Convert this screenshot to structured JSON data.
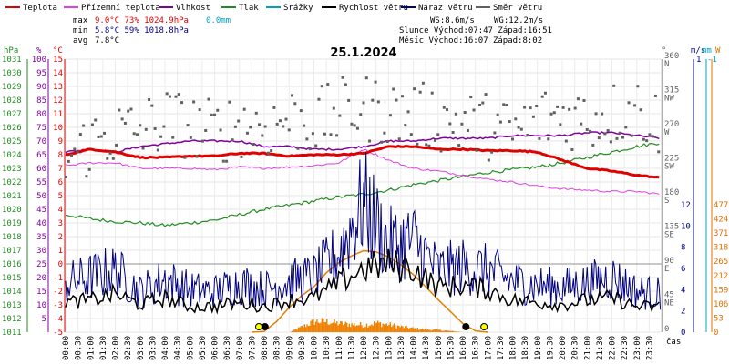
{
  "chart_data": {
    "type": "line",
    "title": "25.1.2024",
    "legend": [
      {
        "name": "Teplota",
        "color": "#e00000"
      },
      {
        "name": "Přízemní teplota",
        "color": "#e040e0"
      },
      {
        "name": "Vlhkost",
        "color": "#8000a0"
      },
      {
        "name": "Tlak",
        "color": "#228b22"
      },
      {
        "name": "Srážky",
        "color": "#00a0c0"
      },
      {
        "name": "Rychlost větru",
        "color": "#000000"
      },
      {
        "name": "Náraz větru",
        "color": "#000080"
      },
      {
        "name": "Směr větru",
        "color": "#606060"
      }
    ],
    "stats": {
      "max_label": "max",
      "max_values": "9.0°C  73%  1024.9hPa",
      "max_rain": "0.0mm",
      "min_label": "min",
      "min_values": "5.8°C  59%  1018.8hPa",
      "avg_label": "avg",
      "avg_values": "7.8°C",
      "wind_line": "WS:8.6m/s",
      "gust_line": "WG:12.2m/s",
      "sun_line": "Slunce Východ:07:47  Západ:16:51",
      "moon_line": "Měsíc  Východ:16:07  Západ:8:02"
    },
    "axes": {
      "hpa": {
        "label": "hPa",
        "ticks": [
          1031,
          1030,
          1029,
          1028,
          1027,
          1026,
          1025,
          1024,
          1023,
          1022,
          1021,
          1020,
          1019,
          1018,
          1017,
          1016,
          1015,
          1014,
          1013,
          1012,
          1011
        ]
      },
      "pct": {
        "label": "%",
        "ticks": [
          100,
          95,
          90,
          85,
          80,
          75,
          70,
          65,
          60,
          55,
          50,
          45,
          40,
          35,
          30,
          25,
          20,
          15,
          10,
          5
        ]
      },
      "degc": {
        "label": "°C",
        "ticks": [
          15,
          14,
          13,
          12,
          11,
          10,
          9,
          8,
          7,
          6,
          5,
          4,
          3,
          2,
          1,
          0,
          -1,
          -2,
          -3,
          -4,
          -5
        ]
      },
      "dir": {
        "label": "°",
        "ticks": [
          {
            "v": 360,
            "l": "N"
          },
          {
            "v": 315,
            "l": "NW"
          },
          {
            "v": 270,
            "l": "W"
          },
          {
            "v": 225,
            "l": "SW"
          },
          {
            "v": 180,
            "l": "S"
          },
          {
            "v": 135,
            "l": "SE"
          },
          {
            "v": 90,
            "l": "E"
          },
          {
            "v": 45,
            "l": "NE"
          },
          {
            "v": 0,
            "l": ""
          }
        ]
      },
      "ms": {
        "label": "m/s",
        "top": "1",
        "ticks": [
          12,
          10,
          8,
          6,
          4,
          2,
          0
        ]
      },
      "mm": {
        "label": "mm",
        "top": "-1"
      },
      "w": {
        "label": "W",
        "ticks": [
          477,
          424,
          371,
          318,
          265,
          212,
          159,
          106,
          53,
          0
        ]
      },
      "x_label": "čas",
      "x_ticks": [
        "00:00",
        "00:30",
        "01:00",
        "01:30",
        "02:00",
        "02:30",
        "03:00",
        "03:30",
        "04:00",
        "04:30",
        "05:00",
        "05:30",
        "06:00",
        "06:30",
        "07:00",
        "07:30",
        "08:00",
        "08:30",
        "09:00",
        "09:30",
        "10:00",
        "10:30",
        "11:00",
        "11:30",
        "12:00",
        "12:30",
        "13:00",
        "13:30",
        "14:00",
        "14:30",
        "15:00",
        "15:30",
        "16:00",
        "16:30",
        "17:00",
        "17:30",
        "18:00",
        "18:30",
        "19:00",
        "19:30",
        "20:00",
        "20:30",
        "21:00",
        "21:30",
        "22:00",
        "22:30",
        "23:00",
        "23:30"
      ]
    },
    "temperature": {
      "t": [
        0,
        1,
        2,
        3,
        4,
        5,
        6,
        7,
        8,
        9,
        10,
        11,
        12,
        13,
        14,
        15,
        16,
        17,
        18,
        19,
        20,
        21,
        22,
        23,
        24
      ],
      "v": [
        8.0,
        8.4,
        8.2,
        7.8,
        7.8,
        7.9,
        7.9,
        8.1,
        8.1,
        7.9,
        8.0,
        8.0,
        8.1,
        8.6,
        8.6,
        8.4,
        8.4,
        8.3,
        8.3,
        8.2,
        7.6,
        7.0,
        6.8,
        6.5,
        6.3
      ]
    },
    "ground_temperature": {
      "t": [
        0,
        1,
        2,
        3,
        4,
        5,
        6,
        7,
        8,
        9,
        10,
        11,
        12,
        13,
        14,
        15,
        16,
        17,
        18,
        19,
        20,
        21,
        22,
        23,
        24
      ],
      "v": [
        7.2,
        7.4,
        7.4,
        7.0,
        7.0,
        7.0,
        6.9,
        7.1,
        7.0,
        7.1,
        7.2,
        7.4,
        8.4,
        7.6,
        7.0,
        6.8,
        6.5,
        6.2,
        6.0,
        5.7,
        5.5,
        5.4,
        5.3,
        5.3,
        5.1
      ]
    },
    "humidity": {
      "t": [
        0,
        1,
        2,
        3,
        4,
        5,
        6,
        7,
        8,
        9,
        10,
        11,
        12,
        13,
        14,
        15,
        16,
        17,
        18,
        19,
        20,
        21,
        22,
        23,
        24
      ],
      "v": [
        66,
        67,
        66,
        68,
        69,
        70,
        70,
        70,
        68,
        68,
        67,
        67,
        68,
        70,
        70,
        71,
        71,
        71,
        72,
        72,
        72,
        73,
        73,
        72,
        71
      ]
    },
    "pressure": {
      "t": [
        0,
        1,
        2,
        3,
        4,
        5,
        6,
        7,
        8,
        9,
        10,
        11,
        12,
        13,
        14,
        15,
        16,
        17,
        18,
        19,
        20,
        21,
        22,
        23,
        24
      ],
      "v": [
        1019.6,
        1019.3,
        1019.1,
        1019.0,
        1018.8,
        1019.0,
        1019.2,
        1019.6,
        1020.0,
        1020.3,
        1020.6,
        1020.9,
        1021.1,
        1021.4,
        1021.8,
        1022.1,
        1022.4,
        1022.7,
        1022.9,
        1023.1,
        1023.4,
        1023.8,
        1024.2,
        1024.6,
        1024.9
      ]
    },
    "wind_speed": {
      "t": [
        0,
        1,
        2,
        3,
        4,
        5,
        6,
        7,
        8,
        9,
        10,
        11,
        12,
        13,
        14,
        15,
        16,
        17,
        18,
        19,
        20,
        21,
        22,
        23,
        24
      ],
      "v": [
        2.8,
        3.0,
        3.6,
        2.6,
        3.2,
        2.4,
        2.4,
        2.8,
        2.4,
        3.0,
        3.2,
        4.6,
        6.0,
        6.4,
        6.0,
        4.2,
        4.4,
        4.0,
        3.0,
        2.8,
        2.6,
        3.0,
        3.2,
        2.4,
        2.4
      ]
    },
    "wind_gust": {
      "t": [
        0,
        1,
        2,
        3,
        4,
        5,
        6,
        7,
        8,
        9,
        10,
        11,
        12,
        13,
        14,
        15,
        16,
        17,
        18,
        19,
        20,
        21,
        22,
        23,
        24
      ],
      "v": [
        4.6,
        5.2,
        5.8,
        3.8,
        5.0,
        4.0,
        3.8,
        4.6,
        4.0,
        4.8,
        5.2,
        7.4,
        12.2,
        8.2,
        8.6,
        5.8,
        6.2,
        5.8,
        4.8,
        4.4,
        4.2,
        4.6,
        5.2,
        3.8,
        3.6
      ]
    },
    "wind_direction": {
      "t": [
        0,
        1,
        2,
        3,
        4,
        5,
        6,
        7,
        8,
        9,
        10,
        11,
        12,
        13,
        14,
        15,
        16,
        17,
        18,
        19,
        20,
        21,
        22,
        23,
        24
      ],
      "v": [
        225,
        250,
        262,
        265,
        280,
        272,
        262,
        275,
        270,
        282,
        276,
        290,
        296,
        290,
        286,
        282,
        276,
        272,
        262,
        280,
        286,
        282,
        288,
        296,
        272
      ]
    },
    "solar_radiation": {
      "t": [
        0,
        7.5,
        8,
        8.5,
        9,
        9.5,
        10,
        10.5,
        11,
        11.5,
        12,
        12.5,
        13,
        13.5,
        14,
        14.5,
        15,
        15.5,
        16,
        16.5,
        17,
        24
      ],
      "v": [
        0,
        0,
        3,
        40,
        92,
        136,
        170,
        222,
        260,
        285,
        305,
        301,
        282,
        252,
        216,
        170,
        122,
        77,
        32,
        5,
        0,
        0
      ]
    },
    "solar_intensity": {
      "t": [
        9,
        9.5,
        10,
        10.5,
        11,
        11.5,
        12,
        12.5,
        13,
        13.5,
        14,
        14.5,
        15,
        15.5,
        16
      ],
      "v": [
        0,
        20,
        40,
        40,
        32,
        29,
        27,
        34,
        28,
        20,
        14,
        10,
        8,
        4,
        0
      ]
    },
    "events": [
      {
        "type": "sunrise",
        "t": 7.78
      },
      {
        "type": "moonset",
        "t": 8.03
      },
      {
        "type": "moonrise",
        "t": 16.12
      },
      {
        "type": "sunset",
        "t": 16.85
      }
    ]
  }
}
